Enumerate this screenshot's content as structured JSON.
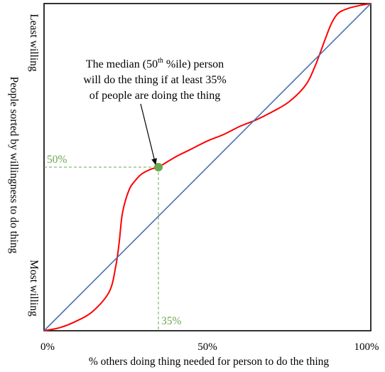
{
  "chart_data": {
    "type": "line",
    "title": "",
    "xlabel": "% others doing thing needed for person to do the thing",
    "ylabel": "People sorted by willingness to do thing",
    "y_top_label": "Least willing",
    "y_bottom_label": "Most willing",
    "xlim": [
      0,
      100
    ],
    "ylim": [
      0,
      100
    ],
    "x_tick_labels": [
      "0%",
      "50%",
      "100%"
    ],
    "x_ticks": [
      0,
      50,
      100
    ],
    "grid": false,
    "legend": "none",
    "series": [
      {
        "color": "#ff0000",
        "style": "curve",
        "x": [
          0,
          5,
          10,
          15,
          20,
          22,
          23,
          24,
          26,
          28,
          30,
          33,
          35,
          40,
          45,
          50,
          55,
          60,
          65,
          70,
          75,
          80,
          83,
          86,
          88,
          90,
          93,
          97,
          100
        ],
        "y": [
          0,
          1,
          3,
          6,
          12,
          20,
          27,
          36,
          43,
          46,
          48,
          49.5,
          50,
          53,
          55.5,
          58,
          60,
          62.5,
          64.5,
          67,
          70,
          75,
          81,
          89,
          94,
          97,
          98.5,
          99.5,
          100
        ]
      },
      {
        "color": "#4a6fb3",
        "style": "line",
        "x": [
          0,
          100
        ],
        "y": [
          0,
          100
        ]
      }
    ],
    "highlight_point": {
      "x": 35,
      "y": 50,
      "x_label": "35%",
      "y_label": "50%",
      "color": "#6aa84f"
    },
    "annotation": {
      "line1_pre": "The median (50",
      "line1_sup": "th",
      "line1_post": " %ile) person",
      "line2": "will do the thing if at least 35%",
      "line3": "of people are doing the thing"
    }
  }
}
